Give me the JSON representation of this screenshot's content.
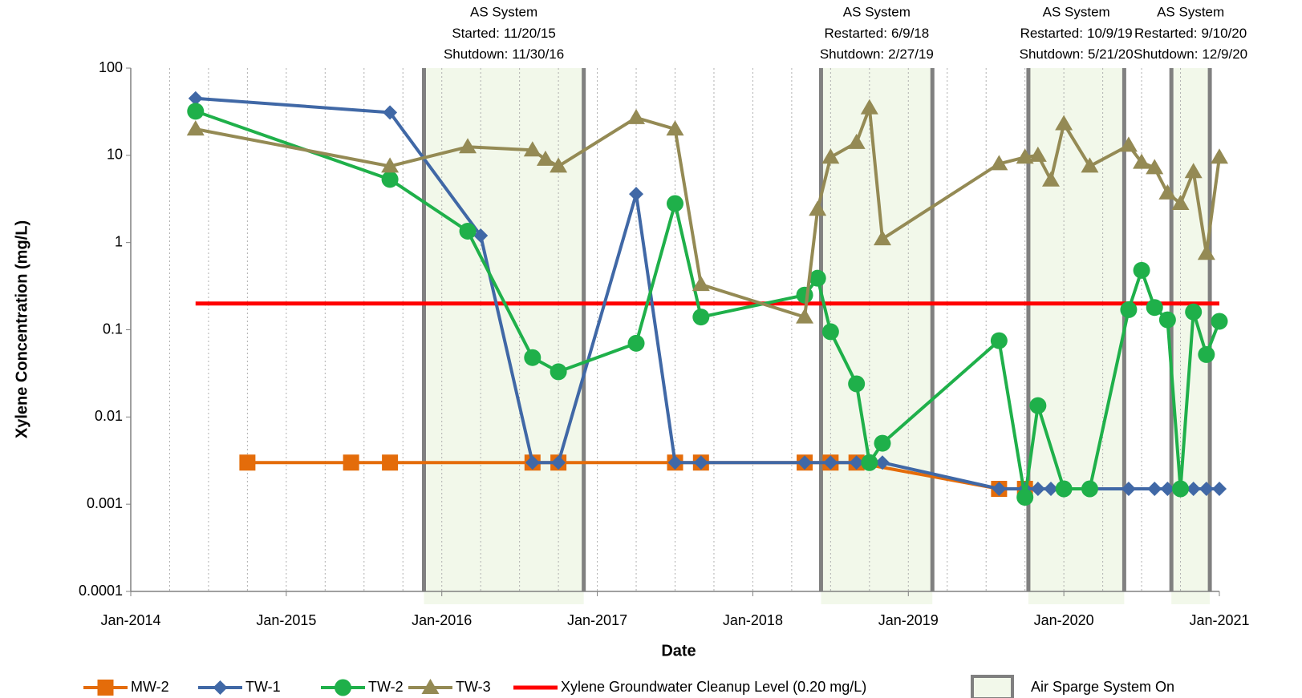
{
  "chart_data": {
    "type": "line",
    "x_label": "Date",
    "y_label": "Xylene Concentration (mg/L)",
    "log_y": true,
    "ylim": [
      0.0001,
      100
    ],
    "yticks": [
      0.0001,
      0.001,
      0.01,
      0.1,
      1,
      10,
      100
    ],
    "xlim": [
      "2014-01",
      "2021-01"
    ],
    "xticks": [
      {
        "value": "2014-01",
        "label": "Jan-2014"
      },
      {
        "value": "2015-01",
        "label": "Jan-2015"
      },
      {
        "value": "2016-01",
        "label": "Jan-2016"
      },
      {
        "value": "2017-01",
        "label": "Jan-2017"
      },
      {
        "value": "2018-01",
        "label": "Jan-2018"
      },
      {
        "value": "2019-01",
        "label": "Jan-2019"
      },
      {
        "value": "2020-01",
        "label": "Jan-2020"
      },
      {
        "value": "2021-01",
        "label": "Jan-2021"
      }
    ],
    "x_grid": "dotted",
    "series": [
      {
        "name": "Xylene Groundwater Cleanup Level (0.20 mg/L)",
        "color": "#ff0000",
        "marker": "none",
        "x": [
          "2014-06",
          "2021-01"
        ],
        "values": [
          0.2,
          0.2
        ]
      },
      {
        "name": "MW-2",
        "color": "#e46c0a",
        "marker": "square",
        "x": [
          "2014-10",
          "2015-06",
          "2015-09",
          "2016-08",
          "2016-10",
          "2017-07",
          "2017-09",
          "2018-05",
          "2018-07",
          "2018-09",
          "2019-08",
          "2019-10"
        ],
        "values": [
          0.003,
          0.003,
          0.003,
          0.003,
          0.003,
          0.003,
          0.003,
          0.003,
          0.003,
          0.003,
          0.0015,
          0.0015
        ]
      },
      {
        "name": "TW-1",
        "color": "#4068a6",
        "marker": "diamond",
        "x": [
          "2014-06",
          "2015-09",
          "2016-04",
          "2016-08",
          "2016-10",
          "2017-04",
          "2017-07",
          "2017-09",
          "2018-05",
          "2018-07",
          "2018-09",
          "2018-11",
          "2019-08",
          "2019-10",
          "2019-11",
          "2019-12",
          "2020-01",
          "2020-03",
          "2020-06",
          "2020-08",
          "2020-09",
          "2020-10",
          "2020-11",
          "2020-12",
          "2021-01"
        ],
        "values": [
          45,
          31,
          1.2,
          0.003,
          0.003,
          3.6,
          0.003,
          0.003,
          0.003,
          0.003,
          0.003,
          0.003,
          0.0015,
          0.0015,
          0.0015,
          0.0015,
          0.0015,
          0.0015,
          0.0015,
          0.0015,
          0.0015,
          0.0015,
          0.0015,
          0.0015,
          0.0015
        ]
      },
      {
        "name": "TW-2",
        "color": "#1fb04a",
        "marker": "circle",
        "x": [
          "2014-06",
          "2015-09",
          "2016-03",
          "2016-08",
          "2016-10",
          "2017-04",
          "2017-07",
          "2017-09",
          "2018-05",
          "2018-06",
          "2018-07",
          "2018-09",
          "2018-10",
          "2018-11",
          "2019-08",
          "2019-10",
          "2019-11",
          "2020-01",
          "2020-03",
          "2020-06",
          "2020-07",
          "2020-08",
          "2020-09",
          "2020-10",
          "2020-11",
          "2020-12",
          "2021-01"
        ],
        "values": [
          32,
          5.3,
          1.35,
          0.048,
          0.033,
          0.07,
          2.8,
          0.14,
          0.25,
          0.39,
          0.095,
          0.024,
          0.003,
          0.005,
          0.075,
          0.0012,
          0.0135,
          0.0015,
          0.0015,
          0.17,
          0.48,
          0.18,
          0.13,
          0.0015,
          0.16,
          0.052,
          0.125
        ]
      },
      {
        "name": "TW-3",
        "color": "#948a54",
        "marker": "triangle",
        "x": [
          "2014-06",
          "2015-09",
          "2016-03",
          "2016-08",
          "2016-09",
          "2016-10",
          "2017-04",
          "2017-07",
          "2017-09",
          "2018-05",
          "2018-06",
          "2018-07",
          "2018-09",
          "2018-10",
          "2018-11",
          "2019-08",
          "2019-10",
          "2019-11",
          "2019-12",
          "2020-01",
          "2020-03",
          "2020-06",
          "2020-07",
          "2020-08",
          "2020-09",
          "2020-10",
          "2020-11",
          "2020-12",
          "2021-01"
        ],
        "values": [
          20,
          7.5,
          12.5,
          11.5,
          9,
          7.5,
          27,
          20,
          0.33,
          0.14,
          2.4,
          9.5,
          14,
          35,
          1.1,
          8,
          9.5,
          10,
          5.2,
          23,
          7.5,
          13,
          8.3,
          7.2,
          3.7,
          2.8,
          6.5,
          0.75,
          9.5
        ]
      }
    ],
    "shade_label": "Air Sparge System On",
    "shade_color": "#f2f8ea",
    "shade_edge_color": "#808080",
    "periods": [
      {
        "title": "AS System",
        "start_label": "Started:",
        "start": "11/20/15",
        "end_label": "Shutdown:",
        "end": "11/30/16"
      },
      {
        "title": "AS System",
        "start_label": "Restarted:",
        "start": "6/9/18",
        "end_label": "Shutdown:",
        "end": "2/27/19"
      },
      {
        "title": "AS System",
        "start_label": "Restarted:",
        "start": "10/9/19",
        "end_label": "Shutdown:",
        "end": "5/21/20"
      },
      {
        "title": "AS System",
        "start_label": "Restarted:",
        "start": "9/10/20",
        "end_label": "Shutdown:",
        "end": "12/9/20"
      }
    ],
    "legend_position": "bottom"
  }
}
